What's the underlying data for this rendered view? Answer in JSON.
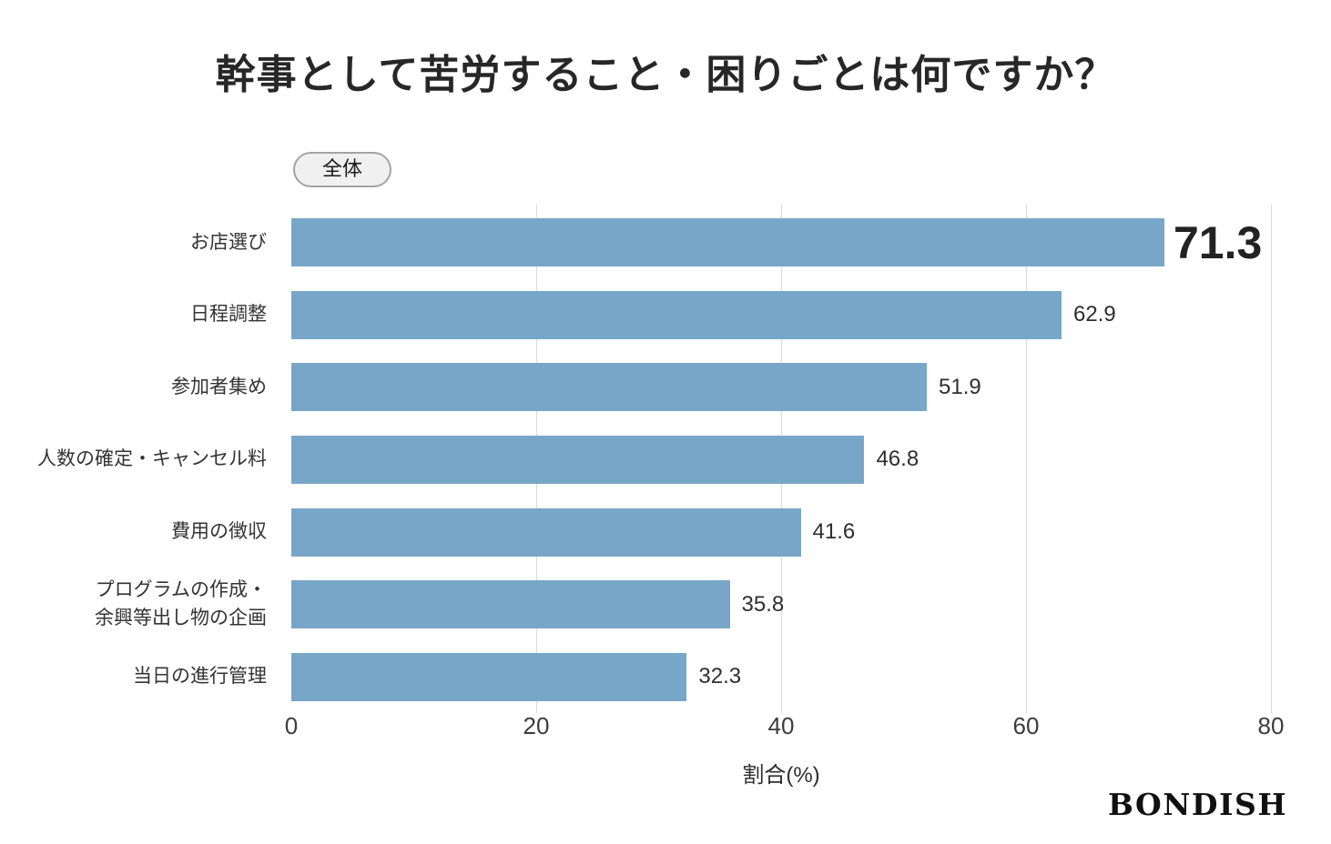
{
  "page": {
    "background": "#ffffff"
  },
  "title": "幹事として苦労すること・困りごとは何ですか？",
  "filter_badge": {
    "label": "全体"
  },
  "logo": {
    "text": "BONDISH"
  },
  "colors": {
    "bar": "#78a6c8",
    "gridline": "#d9d9d9",
    "title_text": "#272727",
    "label_text": "#333333",
    "badge_background": "#f0f0f0",
    "badge_border": "#a3a3a3"
  },
  "chart_data": {
    "type": "bar",
    "orientation": "horizontal",
    "title": "幹事として苦労すること・困りごとは何ですか？",
    "categories": [
      "お店選び",
      "日程調整",
      "参加者集め",
      "人数の確定・キャンセル料",
      "費用の徴収",
      "プログラムの作成・\n余興等出し物の企画",
      "当日の進行管理"
    ],
    "values": [
      71.3,
      62.9,
      51.9,
      46.8,
      41.6,
      35.8,
      32.3
    ],
    "value_labels": [
      "71.3",
      "62.9",
      "51.9",
      "46.8",
      "41.6",
      "35.8",
      "32.3"
    ],
    "value_label_emphasis_index": 0,
    "xlabel": "割合(%)",
    "xlim": [
      0,
      80
    ],
    "xticks": [
      0,
      20,
      40,
      60,
      80
    ],
    "grid": true,
    "bar_color": "#78a6c8",
    "legend": "none"
  }
}
